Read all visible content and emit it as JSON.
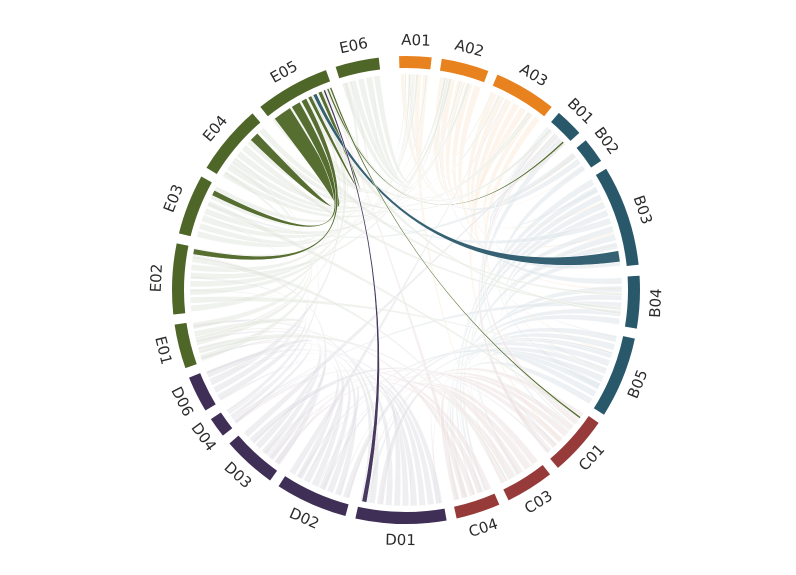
{
  "chart_data": {
    "type": "chord",
    "title": "",
    "center": [
      406,
      290
    ],
    "outer_radius": 234,
    "ring_thickness": 12,
    "highlighted_group": "E05",
    "group_colors": {
      "A": "#e8821e",
      "B": "#2a586b",
      "C": "#963a3a",
      "D": "#3f2e56",
      "E": "#4e6627"
    },
    "segments": [
      {
        "id": "A01",
        "group": "A",
        "start": -1.7,
        "end": 6.3
      },
      {
        "id": "A02",
        "group": "A",
        "start": 8.8,
        "end": 20.6
      },
      {
        "id": "A03",
        "group": "A",
        "start": 23.0,
        "end": 38.5
      },
      {
        "id": "B01",
        "group": "B",
        "start": 40.8,
        "end": 47.8
      },
      {
        "id": "B02",
        "group": "B",
        "start": 50.2,
        "end": 56.5
      },
      {
        "id": "B03",
        "group": "B",
        "start": 58.8,
        "end": 83.8
      },
      {
        "id": "B04",
        "group": "B",
        "start": 86.5,
        "end": 99.5
      },
      {
        "id": "B05",
        "group": "B",
        "start": 102.0,
        "end": 122.2
      },
      {
        "id": "C01",
        "group": "C",
        "start": 124.6,
        "end": 139.5
      },
      {
        "id": "C03",
        "group": "C",
        "start": 142.0,
        "end": 154.0
      },
      {
        "id": "C04",
        "group": "C",
        "start": 156.5,
        "end": 167.5
      },
      {
        "id": "D01",
        "group": "D",
        "start": 170.0,
        "end": 192.5
      },
      {
        "id": "D02",
        "group": "D",
        "start": 195.0,
        "end": 213.0
      },
      {
        "id": "D03",
        "group": "D",
        "start": 215.5,
        "end": 229.0
      },
      {
        "id": "D04",
        "group": "D",
        "start": 231.5,
        "end": 236.5
      },
      {
        "id": "D06",
        "group": "D",
        "start": 239.0,
        "end": 248.0
      },
      {
        "id": "E01",
        "group": "E",
        "start": 250.5,
        "end": 261.5
      },
      {
        "id": "E02",
        "group": "E",
        "start": 264.0,
        "end": 281.5
      },
      {
        "id": "E03",
        "group": "E",
        "start": 284.0,
        "end": 299.0
      },
      {
        "id": "E04",
        "group": "E",
        "start": 301.5,
        "end": 319.0
      },
      {
        "id": "E05",
        "group": "E",
        "start": 321.5,
        "end": 340.0
      },
      {
        "id": "E06",
        "group": "E",
        "start": 342.5,
        "end": 353.3
      }
    ],
    "highlighted_chords": [
      {
        "from": "E05",
        "from_range": [
          322.5,
          327.5
        ],
        "to": "E04",
        "to_range": [
          314.0,
          316.5
        ],
        "color": "#4e6627"
      },
      {
        "from": "E05",
        "from_range": [
          328.0,
          330.5
        ],
        "to": "E03",
        "to_range": [
          296.0,
          297.5
        ],
        "color": "#4e6627"
      },
      {
        "from": "E05",
        "from_range": [
          331.0,
          332.5
        ],
        "to": "E02",
        "to_range": [
          279.5,
          281.0
        ],
        "color": "#4e6627"
      },
      {
        "from": "E05",
        "from_range": [
          333.0,
          334.0
        ],
        "to": "E05",
        "to_range": [
          336.0,
          337.0
        ],
        "color": "#4e6627"
      },
      {
        "from": "E05",
        "from_range": [
          334.5,
          335.5
        ],
        "to": "B03",
        "to_range": [
          79.5,
          82.5
        ],
        "color": "#2a586b"
      },
      {
        "from": "E05",
        "from_range": [
          337.5,
          338.0
        ],
        "to": "D01",
        "to_range": [
          190.5,
          191.8
        ],
        "color": "#3f2e56"
      },
      {
        "from": "E05",
        "from_range": [
          338.5,
          339.0
        ],
        "to": "B01",
        "to_range": [
          46.5,
          47.0
        ],
        "color": "#4e6627"
      },
      {
        "from": "E05",
        "from_range": [
          339.3,
          339.8
        ],
        "to": "C01",
        "to_range": [
          126.0,
          126.5
        ],
        "color": "#4e6627"
      }
    ]
  }
}
